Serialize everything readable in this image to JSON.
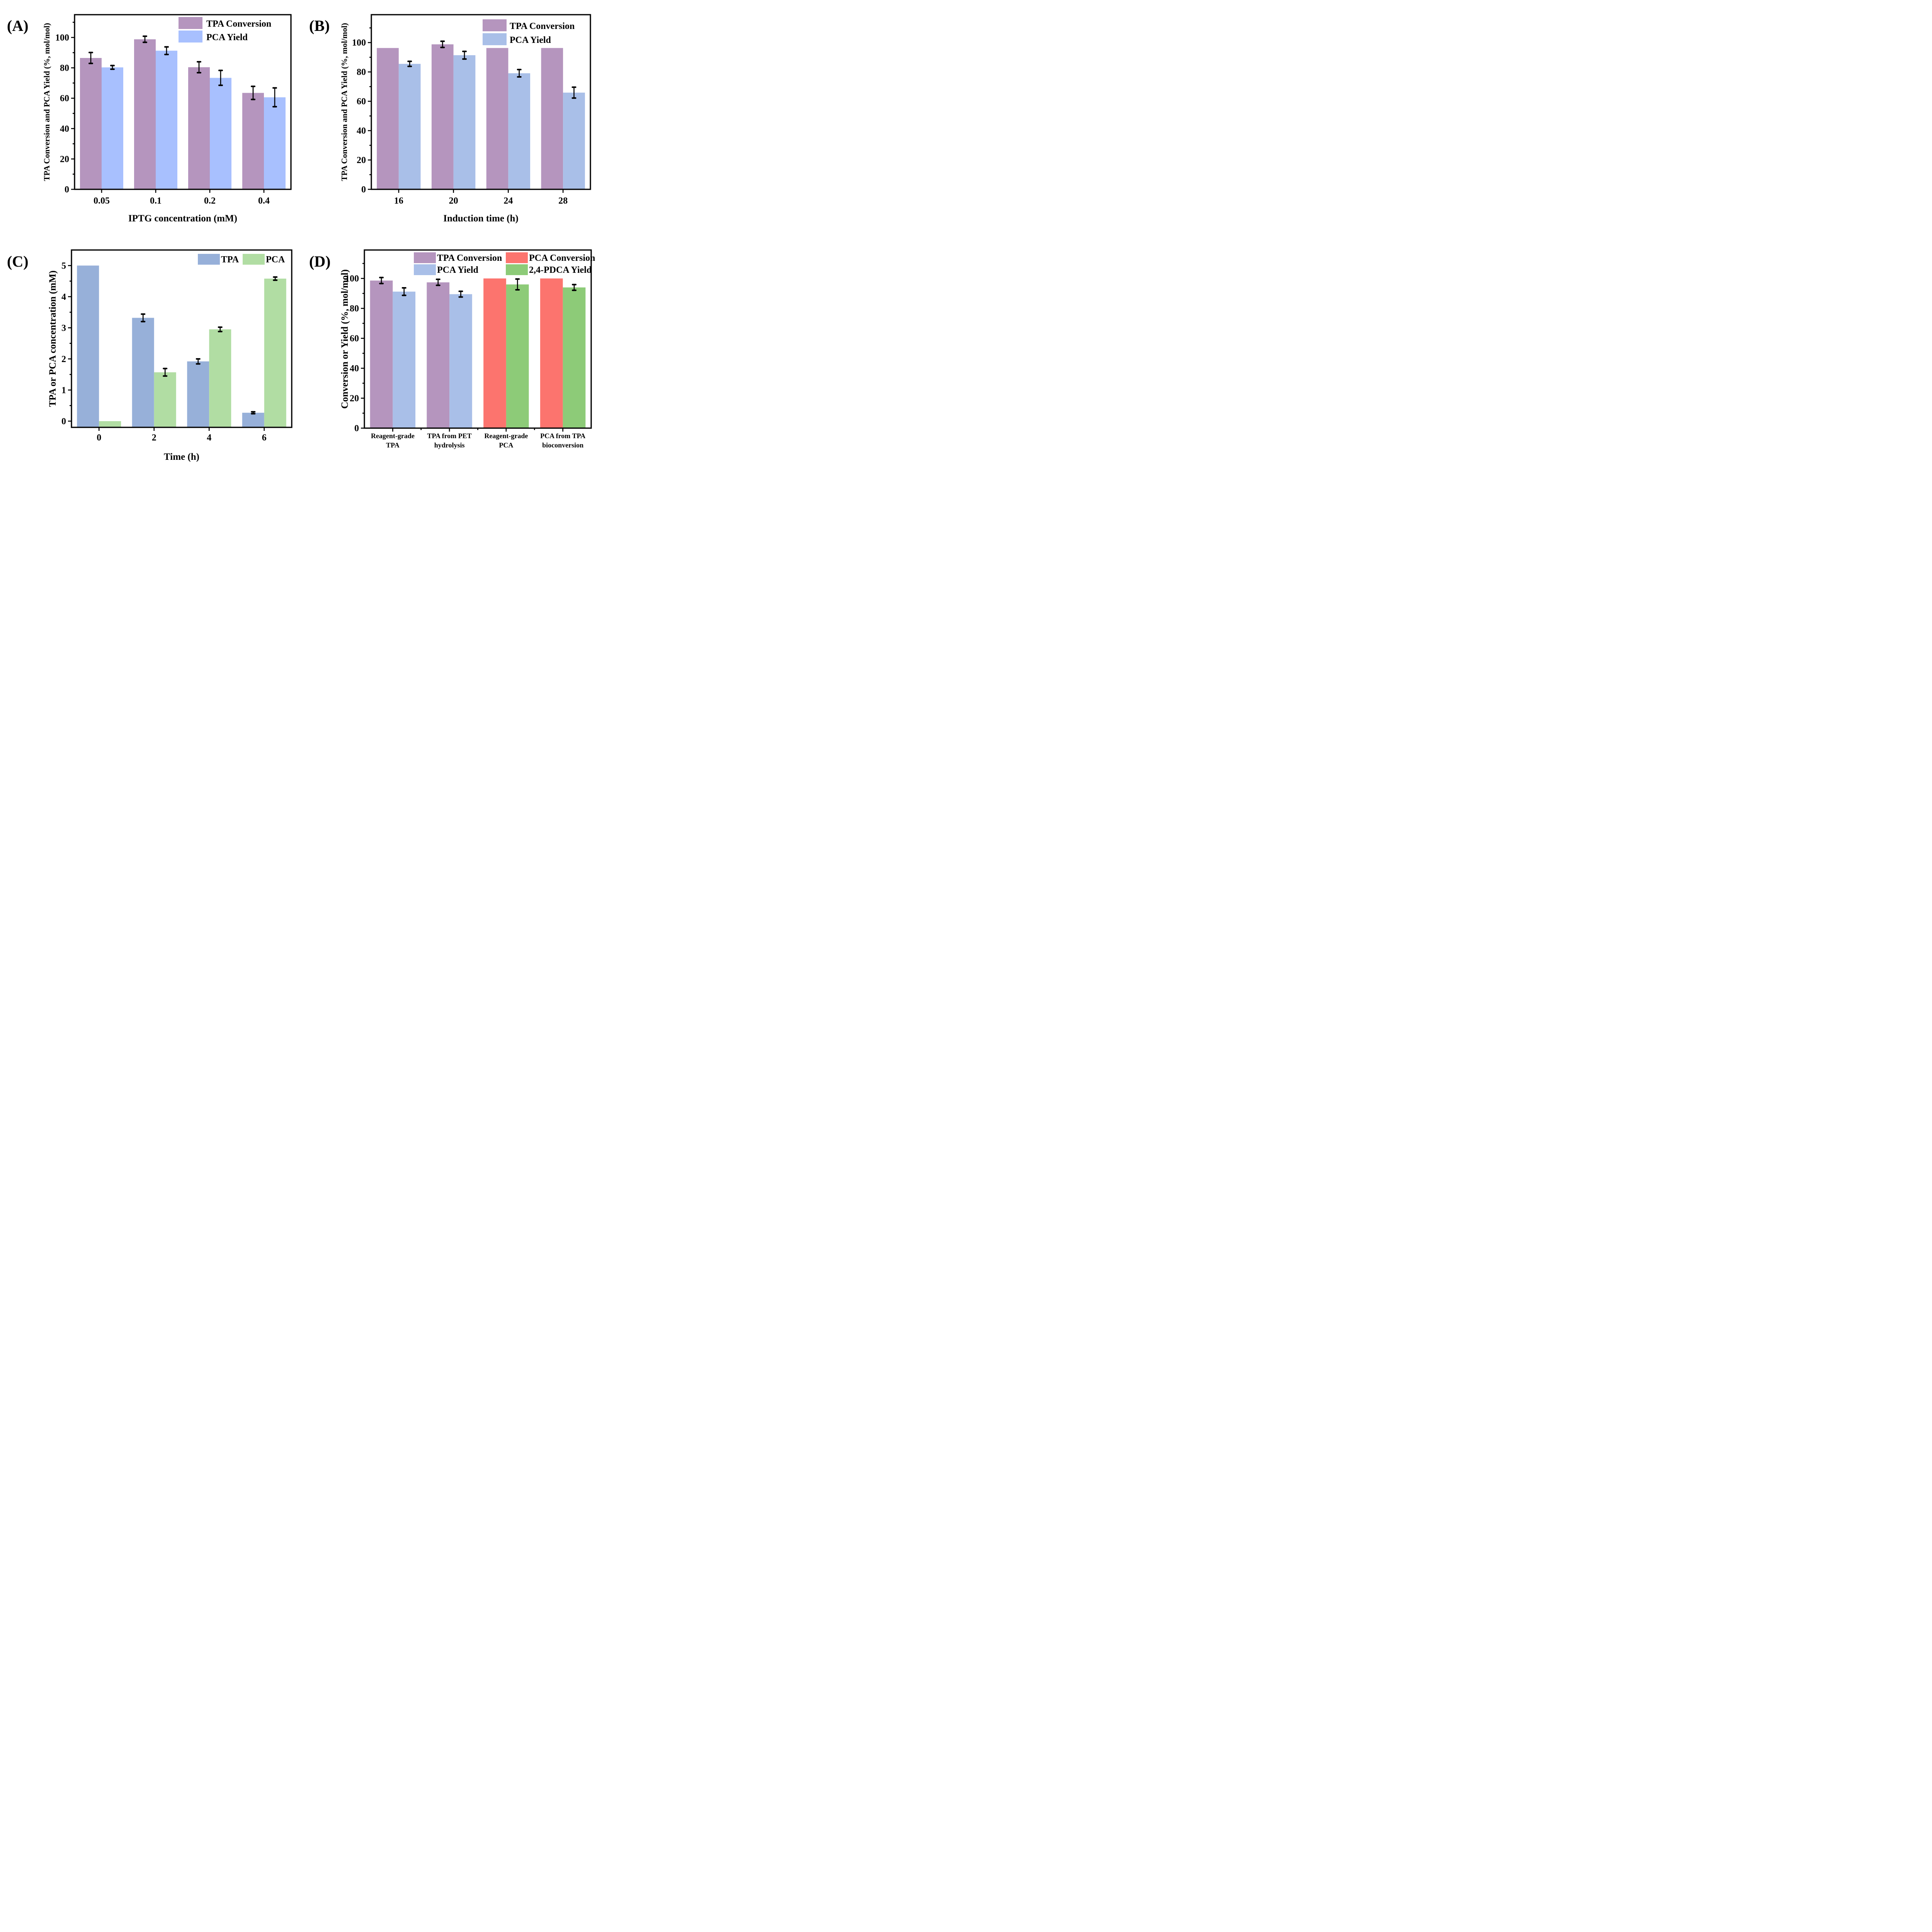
{
  "figure": {
    "panels": [
      "A",
      "B",
      "C",
      "D"
    ]
  },
  "chart_data": [
    {
      "id": "A",
      "panel_label": "(A)",
      "type": "bar",
      "title": "",
      "xlabel": "IPTG concentration (mM)",
      "ylabel": "TPA Conversion and PCA Yield (%, mol/mol)",
      "categories": [
        "0.05",
        "0.1",
        "0.2",
        "0.4"
      ],
      "ylim": [
        0,
        115
      ],
      "yticks": [
        0,
        20,
        40,
        60,
        80,
        100
      ],
      "yminor_step": 10,
      "grid": false,
      "legend": {
        "position": "top-right",
        "columns": 1
      },
      "series": [
        {
          "name": "TPA Conversion",
          "color": "#B595BE",
          "values": [
            86.5,
            98.8,
            80.4,
            63.5
          ],
          "errors": [
            3.6,
            2.0,
            3.6,
            4.3
          ]
        },
        {
          "name": "PCA Yield",
          "color": "#A8C0FE",
          "values": [
            80.3,
            91.3,
            73.4,
            60.6
          ],
          "errors": [
            1.2,
            2.5,
            4.9,
            6.2
          ]
        }
      ]
    },
    {
      "id": "B",
      "panel_label": "(B)",
      "type": "bar",
      "title": "",
      "xlabel": "Induction time (h)",
      "ylabel": "TPA Conversion and PCA Yield (%, mol/mol)",
      "categories": [
        "16",
        "20",
        "24",
        "28"
      ],
      "ylim": [
        0,
        119
      ],
      "yticks": [
        0,
        20,
        40,
        60,
        80,
        100
      ],
      "yminor_step": 10,
      "grid": false,
      "legend": {
        "position": "top-right",
        "columns": 1
      },
      "series": [
        {
          "name": "TPA Conversion",
          "color": "#B595BE",
          "values": [
            96.3,
            98.8,
            96.3,
            96.3
          ],
          "errors": [
            0,
            2.1,
            0,
            0
          ]
        },
        {
          "name": "PCA Yield",
          "color": "#A9BFE8",
          "values": [
            85.5,
            91.4,
            79.1,
            65.9
          ],
          "errors": [
            1.7,
            2.6,
            2.5,
            3.7
          ]
        }
      ]
    },
    {
      "id": "C",
      "panel_label": "(C)",
      "type": "bar",
      "title": "",
      "xlabel": "Time (h)",
      "ylabel": "TPA or PCA concentration (mM)",
      "categories": [
        "0",
        "2",
        "4",
        "6"
      ],
      "ylim": [
        -0.2,
        5.5
      ],
      "yticks": [
        0,
        1,
        2,
        3,
        4,
        5
      ],
      "yminor_step": 0.5,
      "grid": false,
      "legend": {
        "position": "top-right",
        "columns": 2
      },
      "series": [
        {
          "name": "TPA",
          "color": "#97B0D9",
          "values": [
            5.0,
            3.32,
            1.92,
            0.27
          ],
          "errors": [
            0,
            0.12,
            0.08,
            0.03
          ]
        },
        {
          "name": "PCA",
          "color": "#B1DDA3",
          "values": [
            0.0,
            1.57,
            2.95,
            4.58
          ],
          "errors": [
            0,
            0.12,
            0.07,
            0.05
          ]
        }
      ]
    },
    {
      "id": "D",
      "panel_label": "(D)",
      "type": "bar",
      "title": "",
      "xlabel": "",
      "ylabel": "Conversion or Yield (%, mol/mol)",
      "categories": [
        [
          "Reagent-grade",
          "TPA"
        ],
        [
          "TPA from PET",
          "hydrolysis"
        ],
        [
          "Reagent-grade",
          "PCA"
        ],
        [
          "PCA from TPA",
          "bioconversion"
        ]
      ],
      "ylim": [
        0,
        119
      ],
      "yticks": [
        0,
        20,
        40,
        60,
        80,
        100
      ],
      "yminor_step": 10,
      "grid": false,
      "legend": {
        "position": "top-right",
        "columns": 2
      },
      "series": [
        {
          "name": "TPA Conversion",
          "color": "#B595BE",
          "values": [
            98.6,
            97.4,
            null,
            null
          ],
          "errors": [
            2.0,
            2.0,
            null,
            null
          ]
        },
        {
          "name": "PCA Yield",
          "color": "#A9BFE8",
          "values": [
            91.2,
            89.5,
            null,
            null
          ],
          "errors": [
            2.5,
            1.9,
            null,
            null
          ]
        },
        {
          "name": "PCA Conversion",
          "color": "#FC746E",
          "values": [
            null,
            null,
            100.0,
            100.0
          ],
          "errors": [
            null,
            null,
            0,
            0
          ]
        },
        {
          "name": "2,4-PDCA Yield",
          "color": "#8DCB78",
          "values": [
            null,
            null,
            96.0,
            94.0
          ],
          "errors": [
            null,
            null,
            3.6,
            1.9
          ]
        }
      ],
      "bar_layout": [
        [
          "TPA Conversion",
          "PCA Yield"
        ],
        [
          "TPA Conversion",
          "PCA Yield"
        ],
        [
          "PCA Conversion",
          "2,4-PDCA Yield"
        ],
        [
          "PCA Conversion",
          "2,4-PDCA Yield"
        ]
      ],
      "legend_order": [
        "TPA Conversion",
        "PCA Conversion",
        "PCA Yield",
        "2,4-PDCA Yield"
      ]
    }
  ]
}
